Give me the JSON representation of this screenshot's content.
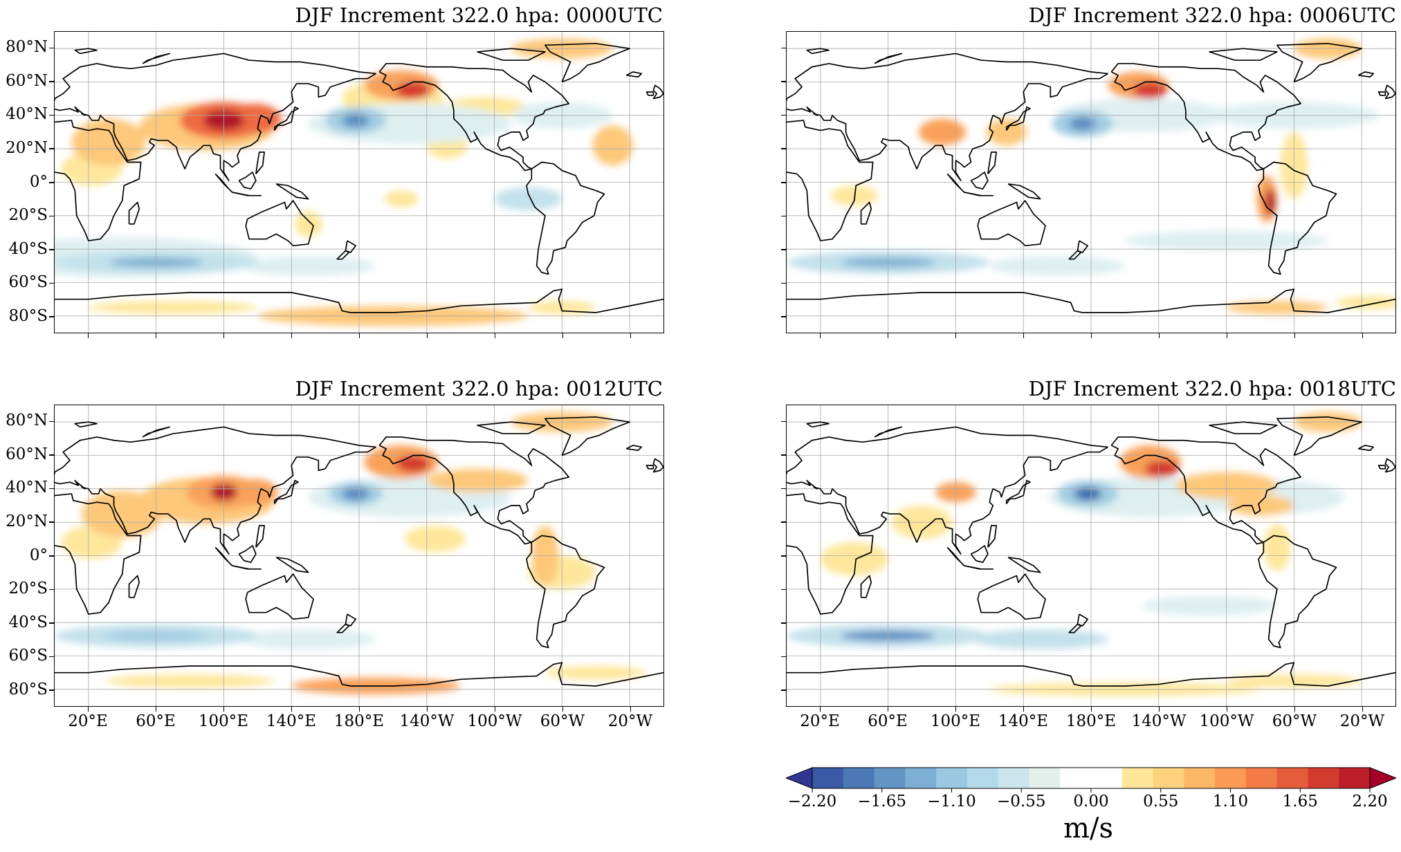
{
  "panels": [
    {
      "title": "DJF Increment 322.0 hpa: 0000UTC",
      "show_lat_labels": true,
      "show_lon_labels": false
    },
    {
      "title": "DJF Increment 322.0 hpa: 0006UTC",
      "show_lat_labels": false,
      "show_lon_labels": false
    },
    {
      "title": "DJF Increment 322.0 hpa: 0012UTC",
      "show_lat_labels": true,
      "show_lon_labels": true
    },
    {
      "title": "DJF Increment 322.0 hpa: 0018UTC",
      "show_lat_labels": false,
      "show_lon_labels": true
    }
  ],
  "lat_labels": [
    "80°N",
    "60°N",
    "40°N",
    "20°N",
    "0°",
    "20°S",
    "40°S",
    "60°S",
    "80°S"
  ],
  "lon_labels": [
    "20°E",
    "60°E",
    "100°E",
    "140°E",
    "180°E",
    "140°W",
    "100°W",
    "60°W",
    "20°W"
  ],
  "map_extent": {
    "lon_min": 0,
    "lon_max": 360,
    "lat_min": -90,
    "lat_max": 90,
    "central_longitude": 180
  },
  "colorbar": {
    "units": "m/s",
    "tick_labels": [
      "−2.20",
      "−1.65",
      "−1.10",
      "−0.55",
      "0.00",
      "0.55",
      "1.10",
      "1.65",
      "2.20"
    ],
    "ticks": [
      -2.2,
      -1.65,
      -1.1,
      -0.55,
      0,
      0.55,
      1.1,
      1.65,
      2.2
    ],
    "range": [
      -2.2,
      2.2
    ],
    "extend": "both",
    "colors": [
      "#313695",
      "#3a5aa5",
      "#4a79b5",
      "#6294c4",
      "#7daed4",
      "#99c8e0",
      "#b4d9ea",
      "#cbe5ef",
      "#e3f0ec",
      "#ffffff",
      "#ffffff",
      "#fee79b",
      "#fdd27f",
      "#fcb866",
      "#f99a55",
      "#f27b46",
      "#e55c3a",
      "#d43b2f",
      "#bd1e2a",
      "#a50026"
    ]
  },
  "fields": {
    "positive_color_levels": [
      "#fee79b",
      "#fdc879",
      "#f9a15a",
      "#ee6b41",
      "#d53a2e",
      "#b0172a"
    ],
    "negative_color_levels": [
      "#deeff0",
      "#c3e1ec",
      "#a2cde3",
      "#7fb0d4",
      "#5a8dc2",
      "#3e6aae"
    ]
  }
}
